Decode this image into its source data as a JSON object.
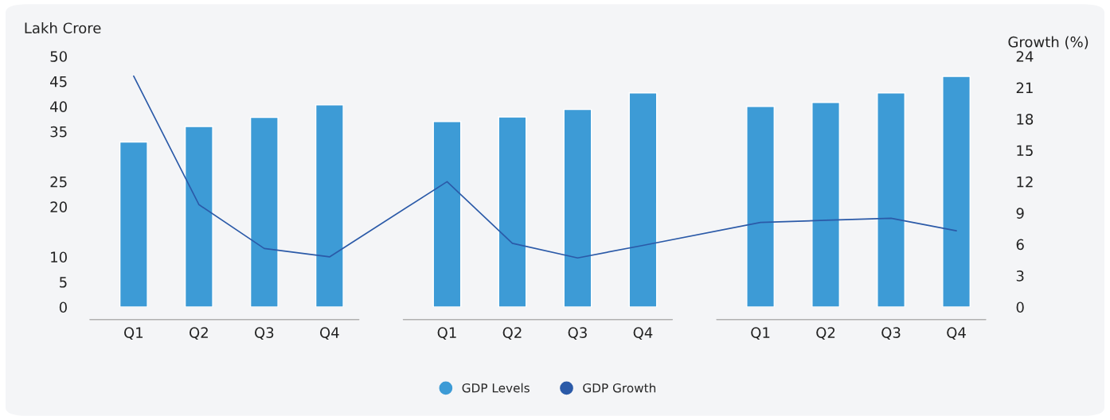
{
  "chart_data": {
    "type": "bar",
    "categories": [
      "Q1",
      "Q2",
      "Q3",
      "Q4",
      "Q1",
      "Q2",
      "Q3",
      "Q4",
      "Q1",
      "Q2",
      "Q3",
      "Q4"
    ],
    "ylabel": "Lakh Crore",
    "y2label": "Growth (%)",
    "ylim": [
      0,
      50
    ],
    "yticks": [
      0,
      5,
      10,
      20,
      25,
      35,
      40,
      45,
      50
    ],
    "y2lim": [
      0,
      24
    ],
    "y2ticks": [
      0,
      3,
      6,
      9,
      12,
      15,
      18,
      21,
      24
    ],
    "series": [
      {
        "name": "GDP Levels",
        "color": "#3d9bd6",
        "values": [
          32.9,
          36.0,
          37.8,
          40.3,
          37.0,
          37.9,
          39.4,
          42.7,
          40.0,
          40.8,
          42.7,
          46.0
        ]
      },
      {
        "name": "GDP Growth",
        "type": "line",
        "axis": "y2",
        "color": "#2b5aa8",
        "values": [
          22.1,
          9.8,
          5.6,
          4.8,
          12.0,
          6.1,
          4.7,
          5.9,
          8.1,
          8.3,
          8.5,
          7.3
        ]
      }
    ],
    "legend": "bottom",
    "grid": false
  }
}
